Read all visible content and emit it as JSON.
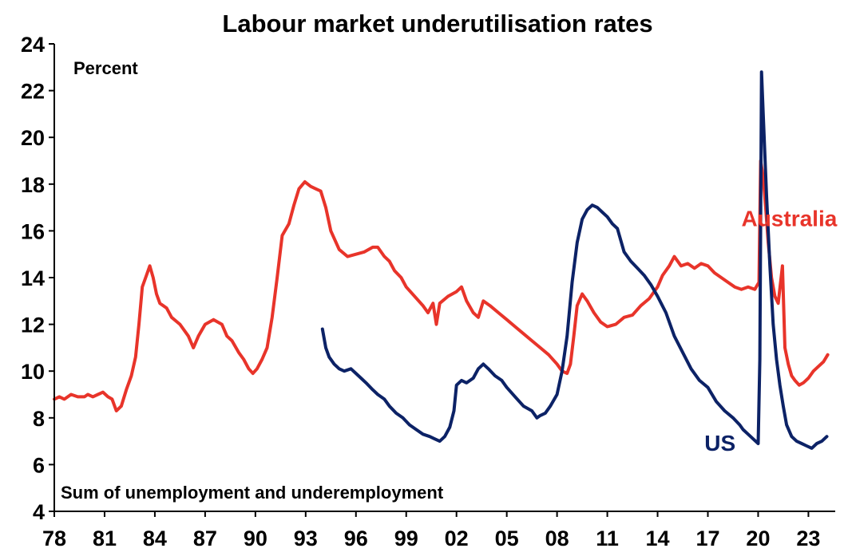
{
  "chart_data": {
    "type": "line",
    "title": "Labour market underutilisation rates",
    "unit_label": "Percent",
    "footnote": "Sum of unemployment and underemployment",
    "ylim": [
      4,
      24
    ],
    "y_ticks": [
      "4",
      "6",
      "8",
      "10",
      "12",
      "14",
      "16",
      "18",
      "20",
      "22",
      "24"
    ],
    "xlim": [
      1978,
      2024.6
    ],
    "x_tick_years": [
      1978,
      1981,
      1984,
      1987,
      1990,
      1993,
      1996,
      1999,
      2002,
      2005,
      2008,
      2011,
      2014,
      2017,
      2020,
      2023
    ],
    "x_tick_labels": [
      "78",
      "81",
      "84",
      "87",
      "90",
      "93",
      "96",
      "99",
      "02",
      "05",
      "08",
      "11",
      "14",
      "17",
      "20",
      "23"
    ],
    "grid": false,
    "legend": "inline labels",
    "colors": {
      "Australia": "#e8342a",
      "US": "#0c2266"
    },
    "series": [
      {
        "name": "Australia",
        "x": [
          1978.0,
          1978.3,
          1978.6,
          1979.0,
          1979.4,
          1979.8,
          1980.0,
          1980.3,
          1980.6,
          1980.9,
          1981.2,
          1981.45,
          1981.7,
          1982.0,
          1982.3,
          1982.6,
          1982.85,
          1983.05,
          1983.25,
          1983.45,
          1983.7,
          1983.9,
          1984.1,
          1984.3,
          1984.7,
          1985.0,
          1985.5,
          1986.0,
          1986.3,
          1986.6,
          1987.0,
          1987.5,
          1988.0,
          1988.3,
          1988.6,
          1989.0,
          1989.3,
          1989.6,
          1989.85,
          1990.1,
          1990.4,
          1990.7,
          1991.0,
          1991.3,
          1991.6,
          1992.0,
          1992.3,
          1992.6,
          1992.95,
          1993.3,
          1993.6,
          1993.9,
          1994.2,
          1994.5,
          1995.0,
          1995.5,
          1996.0,
          1996.5,
          1997.0,
          1997.3,
          1997.7,
          1998.0,
          1998.3,
          1998.7,
          1999.0,
          1999.5,
          2000.0,
          2000.3,
          2000.6,
          2000.8,
          2001.0,
          2001.5,
          2002.0,
          2002.3,
          2002.6,
          2003.0,
          2003.3,
          2003.6,
          2004.0,
          2004.5,
          2005.0,
          2005.5,
          2006.0,
          2006.5,
          2007.0,
          2007.5,
          2008.0,
          2008.3,
          2008.6,
          2008.8,
          2009.0,
          2009.2,
          2009.5,
          2009.8,
          2010.2,
          2010.6,
          2011.0,
          2011.5,
          2012.0,
          2012.5,
          2013.0,
          2013.5,
          2014.0,
          2014.3,
          2014.7,
          2015.0,
          2015.4,
          2015.8,
          2016.2,
          2016.6,
          2017.0,
          2017.4,
          2017.8,
          2018.2,
          2018.6,
          2019.0,
          2019.4,
          2019.8,
          2020.05,
          2020.15,
          2020.3,
          2020.45,
          2020.6,
          2020.8,
          2021.0,
          2021.2,
          2021.45,
          2021.6,
          2021.8,
          2022.0,
          2022.2,
          2022.45,
          2022.7,
          2023.0,
          2023.3,
          2023.6,
          2023.9,
          2024.15
        ],
        "values": [
          8.8,
          8.9,
          8.8,
          9.0,
          8.9,
          8.9,
          9.0,
          8.9,
          9.0,
          9.1,
          8.9,
          8.8,
          8.3,
          8.5,
          9.2,
          9.8,
          10.6,
          12.0,
          13.6,
          14.0,
          14.5,
          14.0,
          13.3,
          12.9,
          12.7,
          12.3,
          12.0,
          11.5,
          11.0,
          11.5,
          12.0,
          12.2,
          12.0,
          11.5,
          11.3,
          10.8,
          10.5,
          10.1,
          9.9,
          10.1,
          10.5,
          11.0,
          12.3,
          14.0,
          15.8,
          16.3,
          17.1,
          17.8,
          18.1,
          17.9,
          17.8,
          17.7,
          17.0,
          16.0,
          15.2,
          14.9,
          15.0,
          15.1,
          15.3,
          15.3,
          14.9,
          14.7,
          14.3,
          14.0,
          13.6,
          13.2,
          12.8,
          12.5,
          12.9,
          12.0,
          12.9,
          13.2,
          13.4,
          13.6,
          13.0,
          12.5,
          12.3,
          13.0,
          12.8,
          12.5,
          12.2,
          11.9,
          11.6,
          11.3,
          11.0,
          10.7,
          10.3,
          10.0,
          9.9,
          10.3,
          11.5,
          12.8,
          13.3,
          13.0,
          12.5,
          12.1,
          11.9,
          12.0,
          12.3,
          12.4,
          12.8,
          13.1,
          13.6,
          14.1,
          14.5,
          14.9,
          14.5,
          14.6,
          14.4,
          14.6,
          14.5,
          14.2,
          14.0,
          13.8,
          13.6,
          13.5,
          13.6,
          13.5,
          13.8,
          19.0,
          18.3,
          17.0,
          15.5,
          14.0,
          13.2,
          12.9,
          14.5,
          11.0,
          10.3,
          9.8,
          9.6,
          9.4,
          9.5,
          9.7,
          10.0,
          10.2,
          10.4,
          10.7
        ]
      },
      {
        "name": "US",
        "x": [
          1994.0,
          1994.2,
          1994.4,
          1994.7,
          1995.0,
          1995.3,
          1995.7,
          1996.0,
          1996.3,
          1996.6,
          1997.0,
          1997.3,
          1997.7,
          1998.0,
          1998.4,
          1998.8,
          1999.2,
          1999.6,
          2000.0,
          2000.4,
          2000.7,
          2001.0,
          2001.3,
          2001.6,
          2001.85,
          2002.0,
          2002.3,
          2002.6,
          2003.0,
          2003.3,
          2003.6,
          2003.9,
          2004.3,
          2004.7,
          2005.0,
          2005.5,
          2006.0,
          2006.5,
          2006.8,
          2007.0,
          2007.3,
          2007.6,
          2008.0,
          2008.3,
          2008.6,
          2008.9,
          2009.2,
          2009.5,
          2009.8,
          2010.1,
          2010.4,
          2010.7,
          2011.0,
          2011.3,
          2011.6,
          2012.0,
          2012.4,
          2012.8,
          2013.2,
          2013.6,
          2014.0,
          2014.5,
          2015.0,
          2015.5,
          2016.0,
          2016.5,
          2017.0,
          2017.5,
          2018.0,
          2018.5,
          2018.9,
          2019.1,
          2019.4,
          2019.7,
          2020.0,
          2020.1,
          2020.2,
          2020.3,
          2020.5,
          2020.7,
          2020.9,
          2021.1,
          2021.3,
          2021.5,
          2021.7,
          2022.0,
          2022.3,
          2022.6,
          2022.9,
          2023.2,
          2023.5,
          2023.8,
          2024.1
        ],
        "values": [
          11.8,
          11.0,
          10.6,
          10.3,
          10.1,
          10.0,
          10.1,
          9.9,
          9.7,
          9.5,
          9.2,
          9.0,
          8.8,
          8.5,
          8.2,
          8.0,
          7.7,
          7.5,
          7.3,
          7.2,
          7.1,
          7.0,
          7.2,
          7.6,
          8.3,
          9.4,
          9.6,
          9.5,
          9.7,
          10.1,
          10.3,
          10.1,
          9.8,
          9.6,
          9.3,
          8.9,
          8.5,
          8.3,
          8.0,
          8.1,
          8.2,
          8.5,
          9.0,
          10.0,
          11.5,
          13.8,
          15.5,
          16.5,
          16.9,
          17.1,
          17.0,
          16.8,
          16.6,
          16.3,
          16.1,
          15.1,
          14.7,
          14.4,
          14.1,
          13.7,
          13.2,
          12.5,
          11.5,
          10.8,
          10.1,
          9.6,
          9.3,
          8.7,
          8.3,
          8.0,
          7.7,
          7.5,
          7.3,
          7.1,
          6.9,
          10.5,
          22.8,
          21.0,
          17.5,
          14.5,
          12.0,
          10.5,
          9.4,
          8.5,
          7.7,
          7.2,
          7.0,
          6.9,
          6.8,
          6.7,
          6.9,
          7.0,
          7.2
        ]
      }
    ],
    "series_labels": [
      {
        "text": "Australia",
        "at_year": 2019.0,
        "at_value": 16.2
      },
      {
        "text": "US",
        "at_year": 2016.8,
        "at_value": 6.6
      }
    ]
  }
}
